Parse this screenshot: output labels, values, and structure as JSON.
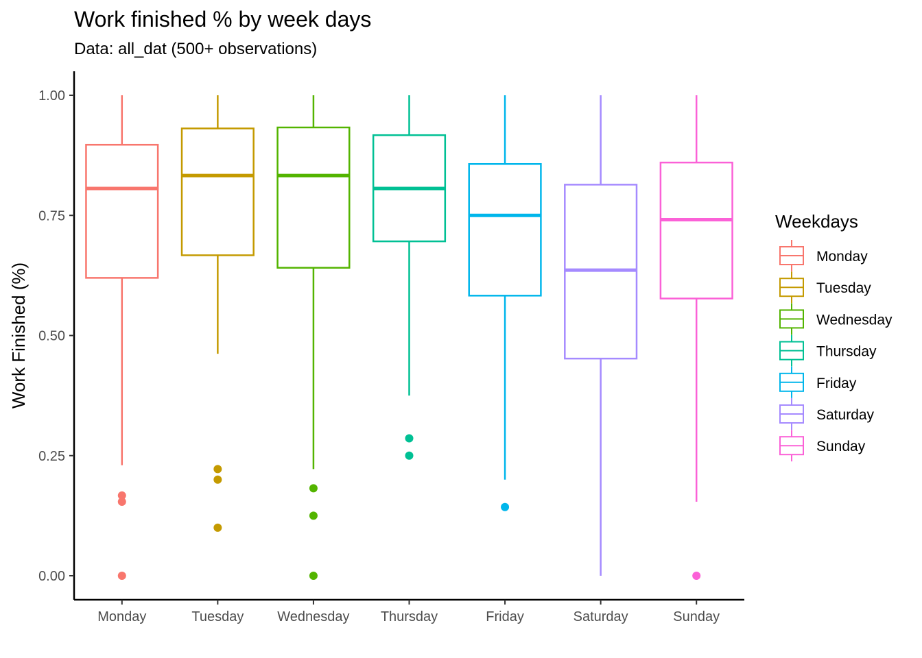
{
  "chart_data": {
    "type": "boxplot",
    "title": "Work finished % by week days",
    "subtitle": "Data: all_dat (500+ observations)",
    "xlabel": "",
    "ylabel": "Work Finished (%)",
    "ylim": [
      0,
      1
    ],
    "yticks": [
      "0.00",
      "0.25",
      "0.50",
      "0.75",
      "1.00"
    ],
    "categories": [
      "Monday",
      "Tuesday",
      "Wednesday",
      "Thursday",
      "Friday",
      "Saturday",
      "Sunday"
    ],
    "legend": {
      "title": "Weekdays",
      "position": "right"
    },
    "grid": false,
    "series": [
      {
        "name": "Monday",
        "color": "#F8766D",
        "lower_whisker": 0.23,
        "q1": 0.62,
        "median": 0.806,
        "q3": 0.897,
        "upper_whisker": 1.0,
        "outliers": [
          0.167,
          0.154,
          0.0
        ]
      },
      {
        "name": "Tuesday",
        "color": "#C49A00",
        "lower_whisker": 0.462,
        "q1": 0.667,
        "median": 0.833,
        "q3": 0.931,
        "upper_whisker": 1.0,
        "outliers": [
          0.222,
          0.2,
          0.1
        ]
      },
      {
        "name": "Wednesday",
        "color": "#53B400",
        "lower_whisker": 0.222,
        "q1": 0.641,
        "median": 0.833,
        "q3": 0.933,
        "upper_whisker": 1.0,
        "outliers": [
          0.182,
          0.125,
          0.0
        ]
      },
      {
        "name": "Thursday",
        "color": "#00C094",
        "lower_whisker": 0.375,
        "q1": 0.696,
        "median": 0.806,
        "q3": 0.917,
        "upper_whisker": 1.0,
        "outliers": [
          0.286,
          0.25
        ]
      },
      {
        "name": "Friday",
        "color": "#00B6EB",
        "lower_whisker": 0.2,
        "q1": 0.583,
        "median": 0.75,
        "q3": 0.857,
        "upper_whisker": 1.0,
        "outliers": [
          0.143
        ]
      },
      {
        "name": "Saturday",
        "color": "#A58AFF",
        "lower_whisker": 0.0,
        "q1": 0.452,
        "median": 0.636,
        "q3": 0.814,
        "upper_whisker": 1.0,
        "outliers": []
      },
      {
        "name": "Sunday",
        "color": "#FB61D7",
        "lower_whisker": 0.154,
        "q1": 0.577,
        "median": 0.741,
        "q3": 0.86,
        "upper_whisker": 1.0,
        "outliers": [
          0.0
        ]
      }
    ]
  }
}
